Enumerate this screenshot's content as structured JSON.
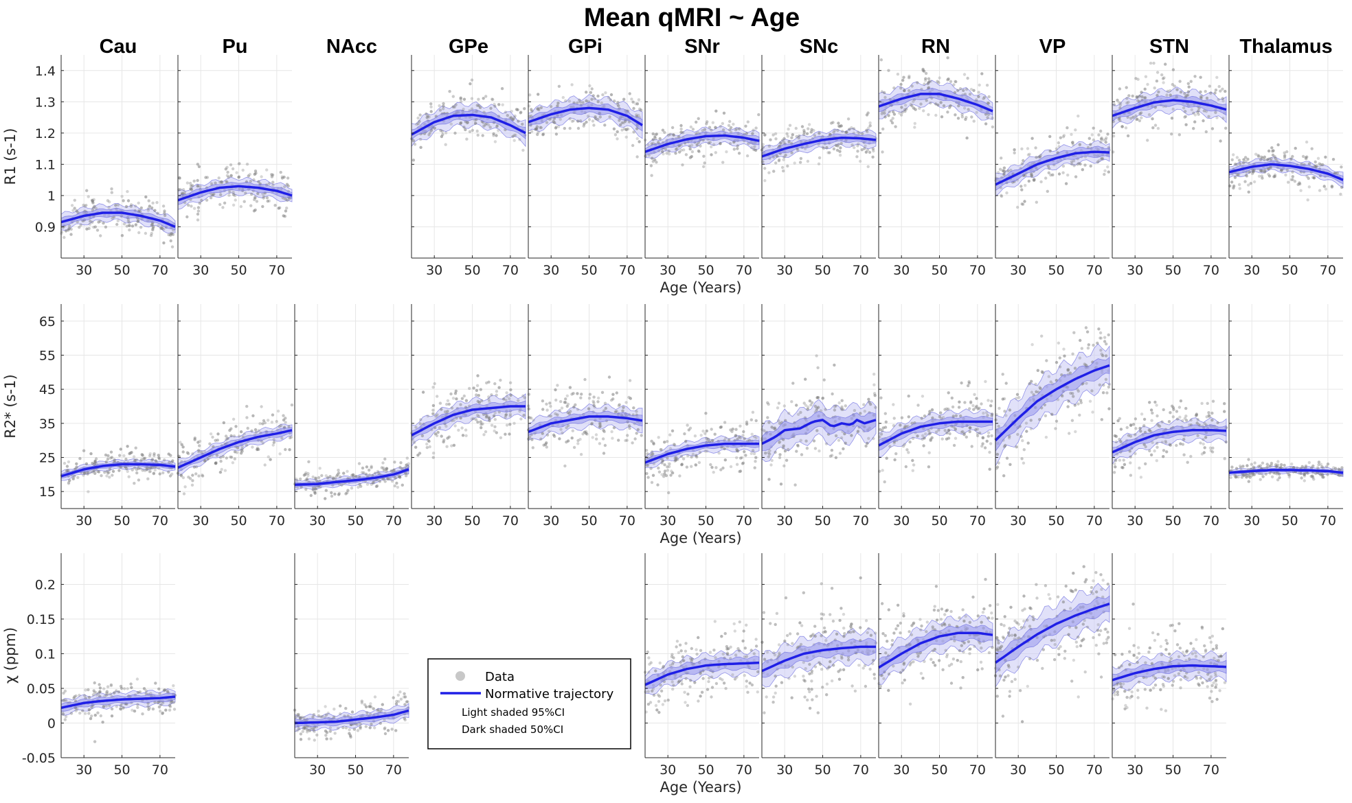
{
  "title": "Mean qMRI ~ Age",
  "colors": {
    "trajectory": "#1f1fe6",
    "ci95": "#c8c8f4",
    "ci50": "#9c9cec",
    "data": "#7a7a7a",
    "grid": "#e6e6e6",
    "axis": "#262626"
  },
  "legend": {
    "data_label": "Data",
    "trajectory_label": "Normative trajectory",
    "light_label": "Light shaded 95%CI",
    "dark_label": "Dark shaded 50%CI"
  },
  "chart_data": {
    "type": "line",
    "regions": [
      "Cau",
      "Pu",
      "NAcc",
      "GPe",
      "GPi",
      "SNr",
      "SNc",
      "RN",
      "VP",
      "STN",
      "Thalamus"
    ],
    "xlabel": "Age (Years)",
    "xlim": [
      18,
      78
    ],
    "xticks": [
      30,
      50,
      70
    ],
    "rows": [
      {
        "metric": "R1",
        "ylabel": "R1 (s-1)",
        "ylim": [
          0.8,
          1.45
        ],
        "yticks": [
          0.9,
          1,
          1.1,
          1.2,
          1.3,
          1.4
        ],
        "ytick_labels": [
          "0.9",
          "1",
          "1.1",
          "1.2",
          "1.3",
          "1.4"
        ],
        "series": {
          "Cau": [
            [
              18,
              0.915
            ],
            [
              30,
              0.935
            ],
            [
              40,
              0.945
            ],
            [
              50,
              0.945
            ],
            [
              60,
              0.935
            ],
            [
              70,
              0.92
            ],
            [
              78,
              0.9
            ]
          ],
          "Pu": [
            [
              18,
              0.985
            ],
            [
              30,
              1.01
            ],
            [
              40,
              1.025
            ],
            [
              50,
              1.03
            ],
            [
              60,
              1.025
            ],
            [
              70,
              1.015
            ],
            [
              78,
              1.0
            ]
          ],
          "GPe": [
            [
              18,
              1.195
            ],
            [
              30,
              1.235
            ],
            [
              40,
              1.255
            ],
            [
              50,
              1.258
            ],
            [
              60,
              1.25
            ],
            [
              70,
              1.225
            ],
            [
              78,
              1.2
            ]
          ],
          "GPi": [
            [
              18,
              1.235
            ],
            [
              30,
              1.26
            ],
            [
              40,
              1.275
            ],
            [
              50,
              1.28
            ],
            [
              60,
              1.275
            ],
            [
              70,
              1.255
            ],
            [
              78,
              1.225
            ]
          ],
          "SNr": [
            [
              18,
              1.14
            ],
            [
              30,
              1.165
            ],
            [
              40,
              1.18
            ],
            [
              50,
              1.19
            ],
            [
              60,
              1.192
            ],
            [
              70,
              1.185
            ],
            [
              78,
              1.175
            ]
          ],
          "SNc": [
            [
              18,
              1.125
            ],
            [
              30,
              1.15
            ],
            [
              40,
              1.165
            ],
            [
              50,
              1.178
            ],
            [
              60,
              1.185
            ],
            [
              70,
              1.183
            ],
            [
              78,
              1.178
            ]
          ],
          "RN": [
            [
              18,
              1.285
            ],
            [
              30,
              1.31
            ],
            [
              40,
              1.325
            ],
            [
              50,
              1.325
            ],
            [
              60,
              1.31
            ],
            [
              70,
              1.29
            ],
            [
              78,
              1.27
            ]
          ],
          "VP": [
            [
              18,
              1.035
            ],
            [
              30,
              1.07
            ],
            [
              40,
              1.1
            ],
            [
              50,
              1.12
            ],
            [
              60,
              1.135
            ],
            [
              70,
              1.14
            ],
            [
              78,
              1.138
            ]
          ],
          "STN": [
            [
              18,
              1.255
            ],
            [
              30,
              1.28
            ],
            [
              40,
              1.298
            ],
            [
              50,
              1.305
            ],
            [
              60,
              1.3
            ],
            [
              70,
              1.288
            ],
            [
              78,
              1.275
            ]
          ],
          "Thalamus": [
            [
              18,
              1.075
            ],
            [
              30,
              1.092
            ],
            [
              40,
              1.1
            ],
            [
              50,
              1.095
            ],
            [
              60,
              1.085
            ],
            [
              70,
              1.07
            ],
            [
              78,
              1.05
            ]
          ]
        },
        "ci50": {
          "Cau": 0.012,
          "Pu": 0.012,
          "GPe": 0.015,
          "GPi": 0.015,
          "SNr": 0.012,
          "SNc": 0.012,
          "RN": 0.015,
          "VP": 0.015,
          "STN": 0.015,
          "Thalamus": 0.01
        },
        "ci95": {
          "Cau": 0.025,
          "Pu": 0.025,
          "GPe": 0.035,
          "GPi": 0.035,
          "SNr": 0.025,
          "SNc": 0.025,
          "RN": 0.035,
          "VP": 0.03,
          "STN": 0.035,
          "Thalamus": 0.02
        },
        "scatter_sd": {
          "Cau": 0.03,
          "Pu": 0.035,
          "GPe": 0.04,
          "GPi": 0.04,
          "SNr": 0.035,
          "SNc": 0.035,
          "RN": 0.045,
          "VP": 0.04,
          "STN": 0.045,
          "Thalamus": 0.03
        }
      },
      {
        "metric": "R2*",
        "ylabel": "R2* (s-1)",
        "ylim": [
          10,
          70
        ],
        "yticks": [
          15,
          25,
          35,
          45,
          55,
          65
        ],
        "ytick_labels": [
          "15",
          "25",
          "35",
          "45",
          "55",
          "65"
        ],
        "series": {
          "Cau": [
            [
              18,
              19.5
            ],
            [
              30,
              21.5
            ],
            [
              40,
              22.5
            ],
            [
              50,
              23
            ],
            [
              60,
              23
            ],
            [
              70,
              22.8
            ],
            [
              78,
              22.3
            ]
          ],
          "Pu": [
            [
              18,
              22
            ],
            [
              30,
              25
            ],
            [
              40,
              27.5
            ],
            [
              50,
              29.5
            ],
            [
              60,
              31
            ],
            [
              70,
              32
            ],
            [
              78,
              33
            ]
          ],
          "NAcc": [
            [
              18,
              17
            ],
            [
              30,
              17.2
            ],
            [
              40,
              17.8
            ],
            [
              50,
              18.3
            ],
            [
              60,
              19
            ],
            [
              70,
              20
            ],
            [
              78,
              21.5
            ]
          ],
          "GPe": [
            [
              18,
              31.5
            ],
            [
              30,
              35
            ],
            [
              40,
              37.5
            ],
            [
              50,
              39
            ],
            [
              60,
              39.5
            ],
            [
              70,
              40
            ],
            [
              78,
              40
            ]
          ],
          "GPi": [
            [
              18,
              32.5
            ],
            [
              30,
              35
            ],
            [
              40,
              36
            ],
            [
              50,
              37
            ],
            [
              60,
              37
            ],
            [
              70,
              36.5
            ],
            [
              78,
              35.8
            ]
          ],
          "SNr": [
            [
              18,
              23.5
            ],
            [
              30,
              26
            ],
            [
              40,
              27.5
            ],
            [
              50,
              28.5
            ],
            [
              60,
              29
            ],
            [
              70,
              29
            ],
            [
              78,
              29
            ]
          ],
          "SNc": [
            [
              18,
              29
            ],
            [
              25,
              31
            ],
            [
              30,
              33
            ],
            [
              38,
              33.5
            ],
            [
              45,
              35.5
            ],
            [
              50,
              36
            ],
            [
              55,
              34
            ],
            [
              60,
              35
            ],
            [
              65,
              34.5
            ],
            [
              68,
              36
            ],
            [
              72,
              35
            ],
            [
              78,
              36
            ]
          ],
          "RN": [
            [
              18,
              28.5
            ],
            [
              30,
              32
            ],
            [
              40,
              34
            ],
            [
              50,
              35
            ],
            [
              60,
              35.5
            ],
            [
              70,
              35.5
            ],
            [
              78,
              35.5
            ]
          ],
          "VP": [
            [
              18,
              30
            ],
            [
              30,
              36.5
            ],
            [
              40,
              41.5
            ],
            [
              50,
              45
            ],
            [
              60,
              48
            ],
            [
              70,
              50.5
            ],
            [
              78,
              52
            ]
          ],
          "STN": [
            [
              18,
              26.5
            ],
            [
              30,
              29.5
            ],
            [
              40,
              31.5
            ],
            [
              50,
              32.5
            ],
            [
              60,
              33
            ],
            [
              70,
              33
            ],
            [
              78,
              32.8
            ]
          ],
          "Thalamus": [
            [
              18,
              20.5
            ],
            [
              30,
              21
            ],
            [
              40,
              21.3
            ],
            [
              50,
              21.3
            ],
            [
              60,
              21.2
            ],
            [
              70,
              21
            ],
            [
              78,
              20.5
            ]
          ]
        },
        "ci50": {
          "Cau": 0.6,
          "Pu": 1,
          "NAcc": 0.6,
          "GPe": 1.3,
          "GPi": 1.3,
          "SNr": 0.9,
          "SNc": 2.2,
          "RN": 1.3,
          "VP": 2.5,
          "STN": 1.3,
          "Thalamus": 0.4
        },
        "ci95": {
          "Cau": 1.3,
          "Pu": 2,
          "NAcc": 1.3,
          "GPe": 3,
          "GPi": 3,
          "SNr": 2,
          "SNc": 5,
          "RN": 3,
          "VP": 6,
          "STN": 3,
          "Thalamus": 0.9
        },
        "scatter_sd": {
          "Cau": 2,
          "Pu": 3.5,
          "NAcc": 2,
          "GPe": 4.5,
          "GPi": 4.5,
          "SNr": 4,
          "SNc": 6,
          "RN": 5,
          "VP": 7,
          "STN": 4.5,
          "Thalamus": 1.3
        }
      },
      {
        "metric": "Chi",
        "ylabel": "χ (ppm)",
        "ylim": [
          -0.05,
          0.245
        ],
        "yticks": [
          -0.05,
          0,
          0.05,
          0.1,
          0.15,
          0.2
        ],
        "ytick_labels": [
          "-0.05",
          "0",
          "0.05",
          "0.1",
          "0.15",
          "0.2"
        ],
        "series": {
          "Cau": [
            [
              18,
              0.022
            ],
            [
              30,
              0.029
            ],
            [
              40,
              0.032
            ],
            [
              50,
              0.034
            ],
            [
              60,
              0.035
            ],
            [
              70,
              0.036
            ],
            [
              78,
              0.038
            ]
          ],
          "NAcc": [
            [
              18,
              0.0
            ],
            [
              30,
              0.001
            ],
            [
              40,
              0.002
            ],
            [
              50,
              0.005
            ],
            [
              60,
              0.008
            ],
            [
              70,
              0.012
            ],
            [
              78,
              0.018
            ]
          ],
          "SNr": [
            [
              18,
              0.055
            ],
            [
              30,
              0.07
            ],
            [
              40,
              0.078
            ],
            [
              50,
              0.083
            ],
            [
              60,
              0.085
            ],
            [
              70,
              0.086
            ],
            [
              78,
              0.087
            ]
          ],
          "SNc": [
            [
              18,
              0.075
            ],
            [
              30,
              0.09
            ],
            [
              40,
              0.1
            ],
            [
              50,
              0.105
            ],
            [
              60,
              0.108
            ],
            [
              70,
              0.11
            ],
            [
              78,
              0.11
            ]
          ],
          "RN": [
            [
              18,
              0.08
            ],
            [
              30,
              0.1
            ],
            [
              40,
              0.115
            ],
            [
              50,
              0.125
            ],
            [
              60,
              0.13
            ],
            [
              70,
              0.13
            ],
            [
              78,
              0.127
            ]
          ],
          "VP": [
            [
              18,
              0.087
            ],
            [
              30,
              0.11
            ],
            [
              40,
              0.128
            ],
            [
              50,
              0.143
            ],
            [
              60,
              0.155
            ],
            [
              70,
              0.165
            ],
            [
              78,
              0.172
            ]
          ],
          "STN": [
            [
              18,
              0.062
            ],
            [
              30,
              0.072
            ],
            [
              40,
              0.078
            ],
            [
              50,
              0.082
            ],
            [
              60,
              0.083
            ],
            [
              70,
              0.082
            ],
            [
              78,
              0.081
            ]
          ]
        },
        "ci50": {
          "Cau": 0.005,
          "NAcc": 0.005,
          "SNr": 0.008,
          "SNc": 0.01,
          "RN": 0.01,
          "VP": 0.012,
          "STN": 0.008
        },
        "ci95": {
          "Cau": 0.01,
          "NAcc": 0.01,
          "SNr": 0.016,
          "SNc": 0.022,
          "RN": 0.022,
          "VP": 0.028,
          "STN": 0.018
        },
        "scatter_sd": {
          "Cau": 0.012,
          "NAcc": 0.012,
          "SNr": 0.025,
          "SNc": 0.035,
          "RN": 0.03,
          "VP": 0.04,
          "STN": 0.028
        }
      }
    ]
  }
}
